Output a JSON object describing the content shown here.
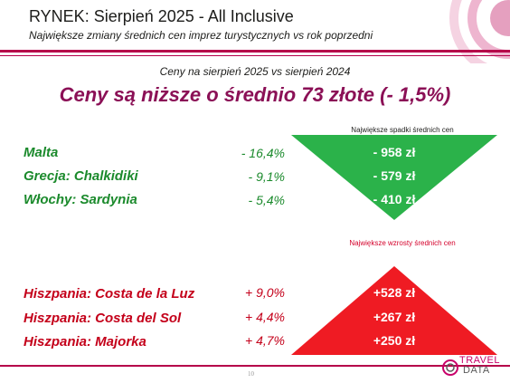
{
  "header": {
    "title": "RYNEK: Sierpień 2025 - All Inclusive",
    "subtitle": "Największe zmiany średnich cen imprez turystycznych vs rok poprzedni"
  },
  "comparison_label": "Ceny na sierpień 2025 vs sierpień 2024",
  "headline": "Ceny są niższe o średnio 73 złote (- 1,5%)",
  "decreases": {
    "caption": "Największe spadki średnich cen",
    "rows": [
      {
        "destination": "Malta",
        "percent": "- 16,4%",
        "amount": "- 958 zł"
      },
      {
        "destination": "Grecja: Chalkidiki",
        "percent": "- 9,1%",
        "amount": "- 579 zł"
      },
      {
        "destination": "Włochy: Sardynia",
        "percent": "- 5,4%",
        "amount": "- 410 zł"
      }
    ]
  },
  "increases": {
    "caption": "Największe wzrosty średnich cen",
    "rows": [
      {
        "destination": "Hiszpania: Costa de la Luz",
        "percent": "+ 9,0%",
        "amount": "+528 zł"
      },
      {
        "destination": "Hiszpania: Costa del Sol",
        "percent": "+ 4,4%",
        "amount": "+267 zł"
      },
      {
        "destination": "Hiszpania: Majorka",
        "percent": "+ 4,7%",
        "amount": "+250 zł"
      }
    ]
  },
  "footer": {
    "page_number": "10",
    "logo_text_top": "TRAVEL",
    "logo_text_bottom": "DATA"
  },
  "colors": {
    "accent": "#b5004a",
    "headline": "#8b1056",
    "decrease": "#2bb24a",
    "increase": "#ef1b23"
  }
}
